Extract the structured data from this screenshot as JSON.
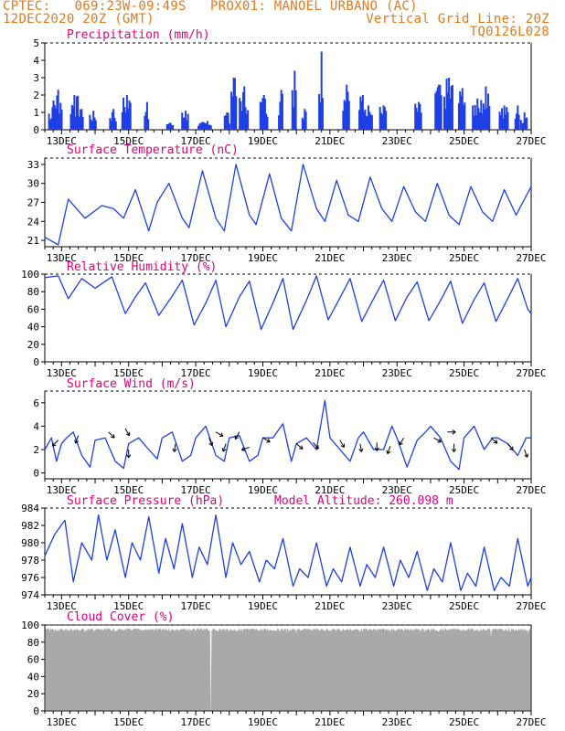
{
  "header": {
    "line1": "CPTEC:   069:23W-09:49S   PROX01: MANOEL URBANO (AC)",
    "line2_left": "12DEC2020 20Z (GMT)",
    "line2_right": "Vertical Grid Line: 20Z",
    "line3_right": "TQ0126L028"
  },
  "colors": {
    "header": "#e07a1e",
    "panel_title": "#e0007a",
    "series": "#1f3fe6",
    "cloud": "#a9a9a9",
    "wind_arrow": "#000000"
  },
  "chart_data": [
    {
      "type": "bar",
      "title": "Precipitation (mm/h)",
      "x_ticks": [
        "13DEC",
        "15DEC",
        "17DEC",
        "19DEC",
        "21DEC",
        "23DEC",
        "25DEC",
        "27DEC"
      ],
      "x_range_days": [
        12.5,
        27.0
      ],
      "ylim": [
        0,
        5
      ],
      "y_ticks": [
        0,
        1,
        2,
        3,
        4,
        5
      ],
      "bursts": [
        [
          12.73,
          1.3
        ],
        [
          12.9,
          2.3
        ],
        [
          13.4,
          2.0
        ],
        [
          13.6,
          1.2
        ],
        [
          13.95,
          1.1
        ],
        [
          14.55,
          1.2
        ],
        [
          14.95,
          2.0
        ],
        [
          15.55,
          1.6
        ],
        [
          16.25,
          0.4
        ],
        [
          16.7,
          1.1
        ],
        [
          17.15,
          0.4
        ],
        [
          17.35,
          0.5
        ],
        [
          17.95,
          1.0
        ],
        [
          18.15,
          3.0
        ],
        [
          18.45,
          2.5
        ],
        [
          19.05,
          2.0
        ],
        [
          19.55,
          2.3
        ],
        [
          19.95,
          3.4
        ],
        [
          20.25,
          1.2
        ],
        [
          20.75,
          4.5
        ],
        [
          21.5,
          2.6
        ],
        [
          22.0,
          2.0
        ],
        [
          22.15,
          1.4
        ],
        [
          22.6,
          1.4
        ],
        [
          23.65,
          1.6
        ],
        [
          24.25,
          2.6
        ],
        [
          24.55,
          3.0
        ],
        [
          24.95,
          2.4
        ],
        [
          25.4,
          1.8
        ],
        [
          25.65,
          2.5
        ],
        [
          26.2,
          1.4
        ],
        [
          26.6,
          1.4
        ],
        [
          26.8,
          1.0
        ]
      ]
    },
    {
      "type": "line",
      "title": "Surface Temperature (nC)",
      "x_ticks": [
        "13DEC",
        "15DEC",
        "17DEC",
        "19DEC",
        "21DEC",
        "23DEC",
        "25DEC",
        "27DEC"
      ],
      "ylim": [
        20,
        34
      ],
      "y_ticks": [
        21,
        24,
        27,
        30,
        33
      ],
      "x": [
        12.5,
        12.9,
        13.2,
        13.7,
        14.2,
        14.55,
        14.85,
        15.2,
        15.6,
        15.85,
        16.2,
        16.6,
        16.8,
        17.2,
        17.6,
        17.85,
        18.2,
        18.6,
        18.8,
        19.2,
        19.55,
        19.85,
        20.2,
        20.6,
        20.85,
        21.2,
        21.55,
        21.85,
        22.2,
        22.55,
        22.85,
        23.2,
        23.55,
        23.85,
        24.2,
        24.55,
        24.85,
        25.2,
        25.55,
        25.85,
        26.2,
        26.55,
        26.85,
        27.0
      ],
      "y": [
        21.5,
        20.3,
        27.5,
        24.5,
        26.5,
        26.0,
        24.5,
        29.0,
        22.5,
        27.0,
        30.0,
        24.5,
        23.0,
        32.0,
        24.5,
        22.5,
        33.0,
        25.0,
        23.5,
        31.5,
        24.5,
        22.5,
        33.0,
        26.0,
        24.0,
        30.5,
        25.0,
        24.0,
        31.0,
        26.0,
        24.0,
        29.5,
        25.5,
        24.0,
        30.0,
        25.0,
        23.5,
        29.5,
        25.5,
        24.0,
        29.0,
        25.0,
        28.0,
        29.5
      ]
    },
    {
      "type": "line",
      "title": "Relative Humidity (%)",
      "x_ticks": [
        "13DEC",
        "15DEC",
        "17DEC",
        "19DEC",
        "21DEC",
        "23DEC",
        "25DEC",
        "27DEC"
      ],
      "ylim": [
        0,
        100
      ],
      "y_ticks": [
        0,
        20,
        40,
        60,
        80,
        100
      ],
      "x": [
        12.5,
        12.9,
        13.2,
        13.6,
        14.0,
        14.5,
        14.9,
        15.2,
        15.5,
        15.9,
        16.3,
        16.6,
        16.95,
        17.3,
        17.6,
        17.9,
        18.3,
        18.6,
        18.95,
        19.3,
        19.6,
        19.9,
        20.3,
        20.6,
        20.95,
        21.3,
        21.6,
        21.95,
        22.3,
        22.6,
        22.95,
        23.3,
        23.6,
        23.95,
        24.3,
        24.6,
        24.95,
        25.3,
        25.6,
        25.95,
        26.3,
        26.6,
        26.9,
        27.0
      ],
      "y": [
        96,
        98,
        72,
        95,
        84,
        97,
        55,
        74,
        90,
        53,
        75,
        93,
        42,
        67,
        93,
        40,
        74,
        92,
        37,
        67,
        95,
        37,
        70,
        98,
        48,
        73,
        95,
        46,
        72,
        93,
        47,
        74,
        91,
        47,
        70,
        92,
        44,
        71,
        90,
        46,
        72,
        95,
        60,
        55
      ]
    },
    {
      "type": "line",
      "title": "Surface Wind (m/s)",
      "x_ticks": [
        "13DEC",
        "15DEC",
        "17DEC",
        "19DEC",
        "21DEC",
        "23DEC",
        "25DEC",
        "27DEC"
      ],
      "ylim": [
        -0.5,
        7
      ],
      "y_ticks": [
        0,
        2,
        4,
        6
      ],
      "x": [
        12.5,
        12.7,
        12.85,
        13.0,
        13.15,
        13.35,
        13.6,
        13.85,
        14.0,
        14.3,
        14.6,
        14.85,
        15.0,
        15.3,
        15.6,
        15.85,
        16.0,
        16.3,
        16.6,
        16.85,
        17.0,
        17.3,
        17.6,
        17.85,
        18.0,
        18.3,
        18.6,
        18.85,
        19.0,
        19.3,
        19.6,
        19.85,
        20.0,
        20.3,
        20.6,
        20.85,
        21.0,
        21.3,
        21.6,
        21.85,
        22.0,
        22.3,
        22.6,
        22.85,
        23.0,
        23.3,
        23.6,
        23.85,
        24.0,
        24.3,
        24.6,
        24.85,
        25.0,
        25.3,
        25.6,
        25.85,
        26.0,
        26.3,
        26.6,
        26.85,
        27.0
      ],
      "y": [
        2.0,
        3.0,
        1.0,
        2.5,
        3.0,
        3.5,
        1.5,
        0.5,
        2.8,
        3.0,
        1.0,
        0.4,
        2.5,
        3.0,
        2.0,
        1.2,
        3.0,
        3.5,
        1.0,
        1.5,
        3.0,
        4.0,
        1.5,
        1.0,
        3.0,
        3.2,
        1.0,
        1.5,
        3.0,
        3.0,
        4.2,
        1.0,
        2.5,
        3.0,
        2.0,
        6.2,
        3.0,
        2.0,
        1.0,
        3.0,
        3.5,
        2.0,
        2.0,
        4.0,
        3.0,
        0.5,
        2.8,
        3.5,
        4.0,
        3.0,
        1.0,
        0.3,
        3.0,
        4.0,
        2.0,
        3.0,
        3.0,
        2.5,
        1.5,
        3.0,
        3.0
      ],
      "arrows": [
        {
          "x": 12.9,
          "y": 2.8,
          "dir": 225
        },
        {
          "x": 13.5,
          "y": 3.2,
          "dir": 200
        },
        {
          "x": 14.4,
          "y": 3.5,
          "dir": 135
        },
        {
          "x": 14.9,
          "y": 3.8,
          "dir": 150
        },
        {
          "x": 15.0,
          "y": 2.0,
          "dir": 180
        },
        {
          "x": 16.4,
          "y": 2.5,
          "dir": 190
        },
        {
          "x": 17.4,
          "y": 3.0,
          "dir": 160
        },
        {
          "x": 17.6,
          "y": 3.5,
          "dir": 120
        },
        {
          "x": 17.9,
          "y": 2.5,
          "dir": 200
        },
        {
          "x": 18.3,
          "y": 3.5,
          "dir": 210
        },
        {
          "x": 18.6,
          "y": 2.2,
          "dir": 250
        },
        {
          "x": 19.0,
          "y": 3.0,
          "dir": 120
        },
        {
          "x": 20.0,
          "y": 2.5,
          "dir": 130
        },
        {
          "x": 20.5,
          "y": 2.6,
          "dir": 140
        },
        {
          "x": 21.3,
          "y": 2.8,
          "dir": 150
        },
        {
          "x": 21.9,
          "y": 2.5,
          "dir": 170
        },
        {
          "x": 22.4,
          "y": 2.6,
          "dir": 180
        },
        {
          "x": 22.8,
          "y": 2.3,
          "dir": 200
        },
        {
          "x": 23.2,
          "y": 3.0,
          "dir": 210
        },
        {
          "x": 24.1,
          "y": 3.0,
          "dir": 120
        },
        {
          "x": 24.5,
          "y": 3.5,
          "dir": 90
        },
        {
          "x": 24.7,
          "y": 2.5,
          "dir": 180
        },
        {
          "x": 25.8,
          "y": 3.0,
          "dir": 130
        },
        {
          "x": 26.3,
          "y": 2.5,
          "dir": 140
        },
        {
          "x": 26.8,
          "y": 2.0,
          "dir": 160
        }
      ]
    },
    {
      "type": "line",
      "title": "Surface Pressure (hPa)",
      "annotation": "Model Altitude: 260.098 m",
      "x_ticks": [
        "13DEC",
        "15DEC",
        "17DEC",
        "19DEC",
        "21DEC",
        "23DEC",
        "25DEC",
        "27DEC"
      ],
      "ylim": [
        974,
        984
      ],
      "y_ticks": [
        974,
        976,
        978,
        980,
        982,
        984
      ],
      "x": [
        12.5,
        12.8,
        13.1,
        13.35,
        13.6,
        13.9,
        14.1,
        14.35,
        14.6,
        14.9,
        15.1,
        15.35,
        15.6,
        15.9,
        16.1,
        16.35,
        16.6,
        16.9,
        17.1,
        17.35,
        17.6,
        17.9,
        18.1,
        18.35,
        18.6,
        18.9,
        19.1,
        19.35,
        19.6,
        19.9,
        20.1,
        20.35,
        20.6,
        20.9,
        21.1,
        21.35,
        21.6,
        21.9,
        22.1,
        22.35,
        22.6,
        22.9,
        23.1,
        23.35,
        23.6,
        23.9,
        24.1,
        24.35,
        24.6,
        24.9,
        25.1,
        25.35,
        25.6,
        25.9,
        26.1,
        26.35,
        26.6,
        26.9,
        27.0
      ],
      "y": [
        978.5,
        981.0,
        982.6,
        975.5,
        980.0,
        978.0,
        983.2,
        978.0,
        981.5,
        976.0,
        980.0,
        978.0,
        983.0,
        976.5,
        980.5,
        977.0,
        982.2,
        976.0,
        979.5,
        977.5,
        983.2,
        976.0,
        980.0,
        977.5,
        979.0,
        975.5,
        978.0,
        977.0,
        980.5,
        975.0,
        977.0,
        976.0,
        980.0,
        975.0,
        977.0,
        975.5,
        979.5,
        975.0,
        977.5,
        976.0,
        979.5,
        975.0,
        978.0,
        976.0,
        979.0,
        974.5,
        977.0,
        975.5,
        980.0,
        974.5,
        976.5,
        975.0,
        979.5,
        974.5,
        976.0,
        975.0,
        980.5,
        975.0,
        976.0
      ]
    },
    {
      "type": "area",
      "title": "Cloud Cover (%)",
      "x_ticks": [
        "13DEC",
        "15DEC",
        "17DEC",
        "19DEC",
        "21DEC",
        "23DEC",
        "25DEC",
        "27DEC"
      ],
      "ylim": [
        0,
        100
      ],
      "y_ticks": [
        0,
        20,
        40,
        60,
        80,
        100
      ],
      "baseline_percent": 96,
      "dips": [
        [
          12.8,
          88
        ],
        [
          13.7,
          92
        ],
        [
          16.8,
          90
        ],
        [
          17.45,
          0
        ],
        [
          18.4,
          90
        ],
        [
          19.7,
          85
        ],
        [
          20.0,
          88
        ],
        [
          21.9,
          92
        ],
        [
          24.0,
          92
        ],
        [
          25.8,
          80
        ],
        [
          26.9,
          88
        ]
      ]
    }
  ]
}
